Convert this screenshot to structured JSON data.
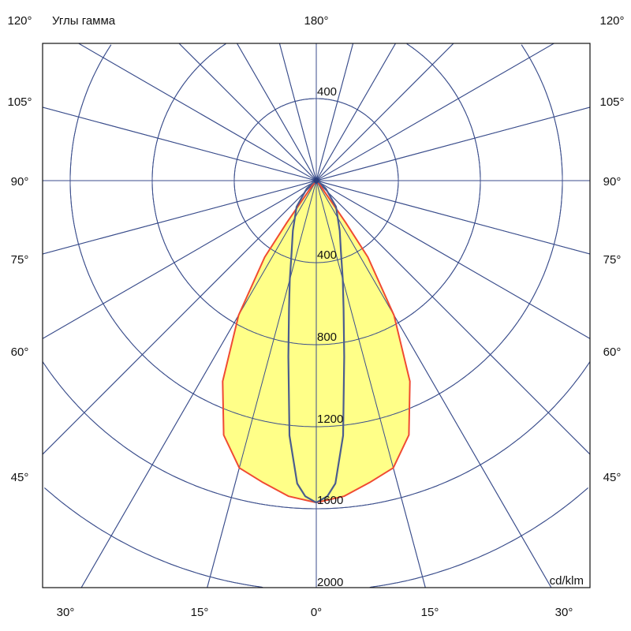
{
  "chart_data": {
    "type": "polar",
    "title": "Углы гамма",
    "unit": "cd/klm",
    "top_label": "180°",
    "radial_ticks": [
      400,
      800,
      1200,
      1600,
      2000
    ],
    "radial_max": 2000,
    "angle_step": 15,
    "grid": true,
    "left_angle_labels": [
      "120°",
      "105°",
      "90°",
      "75°",
      "60°",
      "45°"
    ],
    "right_angle_labels": [
      "120°",
      "105°",
      "90°",
      "75°",
      "60°",
      "45°"
    ],
    "bottom_angle_labels": [
      "30°",
      "15°",
      "0°",
      "15°",
      "30°"
    ],
    "colors": {
      "grid": "#3b4e8c",
      "series1_line": "#f04a32",
      "series1_fill": "#ffff88",
      "series2_line": "#4b5d8e"
    },
    "series": [
      {
        "angles": [
          0,
          5,
          10,
          15,
          20,
          25,
          30,
          34,
          35,
          36,
          40,
          50,
          90
        ],
        "values": [
          1570,
          1545,
          1495,
          1450,
          1320,
          1080,
          758,
          450,
          250,
          90,
          25,
          5,
          0
        ]
      },
      {
        "angles": [
          0,
          2,
          3.6,
          6,
          9,
          12,
          15,
          19,
          25,
          37,
          50,
          70,
          90
        ],
        "values": [
          1570,
          1540,
          1480,
          1250,
          870,
          640,
          500,
          370,
          270,
          160,
          60,
          10,
          0
        ]
      }
    ]
  }
}
